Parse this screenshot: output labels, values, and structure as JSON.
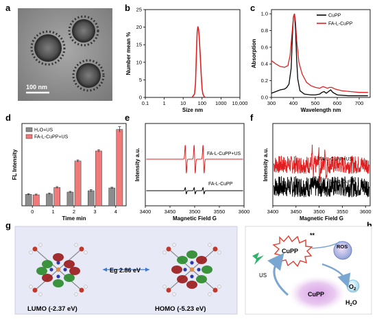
{
  "panel_labels": [
    "a",
    "b",
    "c",
    "d",
    "e",
    "f",
    "g",
    "h"
  ],
  "tem": {
    "scale_bar": "100 nm"
  },
  "chart_data": [
    {
      "panel": "b",
      "type": "line",
      "xlabel": "Size nm",
      "ylabel": "Number mean %",
      "xscale": "log",
      "xlim": [
        0.1,
        10000
      ],
      "ylim": [
        0,
        25
      ],
      "xticks": [
        "0.1",
        "1",
        "10",
        "100",
        "1000",
        "10,000"
      ],
      "yticks": [
        "0",
        "5",
        "10",
        "15",
        "20",
        "25"
      ],
      "series": [
        {
          "color": "#e02020",
          "x": [
            30,
            40,
            45,
            50,
            55,
            60,
            65,
            70,
            80,
            90,
            100,
            110,
            130,
            150
          ],
          "y": [
            0,
            1,
            4,
            12,
            18.5,
            20.2,
            19.5,
            17.5,
            12,
            6.5,
            2.5,
            1,
            0.2,
            0
          ]
        }
      ]
    },
    {
      "panel": "c",
      "type": "line",
      "xlabel": "Wavelength nm",
      "ylabel": "Absorption",
      "xlim": [
        300,
        750
      ],
      "ylim": [
        0,
        1.05
      ],
      "xticks": [
        "300",
        "400",
        "500",
        "600",
        "700"
      ],
      "yticks": [
        "0.0",
        "0.2",
        "0.4",
        "0.6",
        "0.8",
        "1.0"
      ],
      "legend": [
        "CuPP",
        "FA-L-CuPP"
      ],
      "series": [
        {
          "name": "CuPP",
          "color": "#000000",
          "x": [
            300,
            320,
            340,
            360,
            370,
            380,
            390,
            395,
            400,
            405,
            410,
            415,
            420,
            430,
            450,
            480,
            500,
            520,
            530,
            540,
            550,
            560,
            570,
            580,
            600,
            650,
            700,
            740
          ],
          "y": [
            0.05,
            0.07,
            0.09,
            0.1,
            0.12,
            0.16,
            0.35,
            0.7,
            0.96,
            1.0,
            0.8,
            0.45,
            0.22,
            0.08,
            0.04,
            0.03,
            0.03,
            0.04,
            0.06,
            0.07,
            0.05,
            0.07,
            0.09,
            0.06,
            0.03,
            0.02,
            0.02,
            0.02
          ]
        },
        {
          "name": "FA-L-CuPP",
          "color": "#e02020",
          "x": [
            300,
            310,
            320,
            340,
            360,
            375,
            385,
            395,
            400,
            405,
            410,
            415,
            425,
            440,
            460,
            480,
            500,
            520,
            535,
            545,
            555,
            565,
            575,
            590,
            620,
            660,
            700,
            740
          ],
          "y": [
            0.44,
            0.42,
            0.4,
            0.37,
            0.36,
            0.38,
            0.5,
            0.8,
            0.96,
            1.0,
            0.9,
            0.68,
            0.42,
            0.28,
            0.18,
            0.14,
            0.12,
            0.11,
            0.13,
            0.12,
            0.11,
            0.12,
            0.12,
            0.1,
            0.08,
            0.07,
            0.06,
            0.06
          ]
        }
      ]
    },
    {
      "panel": "d",
      "type": "bar",
      "xlabel": "Time min",
      "ylabel": "FL Intensity",
      "categories": [
        "0",
        "1",
        "2",
        "3",
        "4"
      ],
      "ylim": [
        0,
        900
      ],
      "legend": [
        "H₂O+US",
        "FA-L-CuPP+US"
      ],
      "series": [
        {
          "name": "H₂O+US",
          "color": "#8c8c8c",
          "values": [
            125,
            130,
            150,
            165,
            195
          ],
          "errors": [
            8,
            8,
            8,
            12,
            8
          ]
        },
        {
          "name": "FA-L-CuPP+US",
          "color": "#f07a7a",
          "values": [
            120,
            200,
            490,
            600,
            835
          ],
          "errors": [
            8,
            10,
            12,
            12,
            30
          ]
        }
      ]
    },
    {
      "panel": "e",
      "type": "line",
      "xlabel": "Magnetic Field G",
      "ylabel": "Intensity a.u.",
      "xlim": [
        3400,
        3600
      ],
      "xticks": [
        "3400",
        "3450",
        "3500",
        "3550",
        "3600"
      ],
      "series": [
        {
          "name": "FA-L-CuPP+US",
          "color": "#e02020",
          "centers": [
            3482,
            3500,
            3518
          ],
          "amp": 1.0
        },
        {
          "name": "FA-L-CuPP",
          "color": "#000000",
          "centers": [
            3482,
            3500,
            3518
          ],
          "amp": 0.22
        }
      ]
    },
    {
      "panel": "f",
      "type": "line",
      "xlabel": "Magnetic Field G",
      "ylabel": "Intensity a.u.",
      "xlim": [
        3400,
        3610
      ],
      "xticks": [
        "3400",
        "3450",
        "3500",
        "3550",
        "3600"
      ],
      "series": [
        {
          "name": "FA-L-CuPP+US",
          "color": "#e02020",
          "centers": [
            3486,
            3500,
            3514
          ],
          "amp": 0.9
        },
        {
          "name": "FA-L-CuPP",
          "color": "#000000",
          "centers": [],
          "amp": 0.03
        }
      ]
    }
  ],
  "orbitals": {
    "lumo": "LUMO (-2.37 eV)",
    "homo": "HOMO (-5.23 eV)",
    "gap": "Eg 2.86 eV"
  },
  "scheme": {
    "top": "CuPP",
    "star": "**",
    "ros": "ROS",
    "us": "US",
    "bottom": "CuPP",
    "o2": "O",
    "o2_sub": "2",
    "h2o_pre": "H",
    "h2o_sub": "2",
    "h2o_post": "O"
  }
}
